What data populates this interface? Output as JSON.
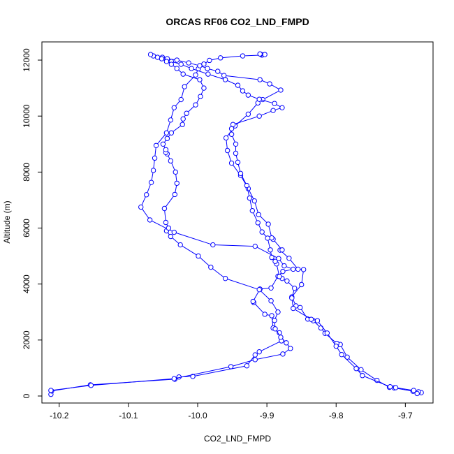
{
  "chart_data": {
    "type": "line",
    "title": "ORCAS RF06 CO2_LND_FMPD",
    "xlabel": "CO2_LND_FMPD",
    "ylabel": "Altitude (m)",
    "xlim": [
      -10.225,
      -9.66
    ],
    "ylim": [
      -250,
      12650
    ],
    "x_ticks": [
      -10.2,
      -10.1,
      -10.0,
      -9.9,
      -9.8,
      -9.7
    ],
    "x_tick_labels": [
      "-10.2",
      "-10.1",
      "-10.0",
      "-9.9",
      "-9.8",
      "-9.7"
    ],
    "y_ticks": [
      0,
      2000,
      4000,
      6000,
      8000,
      10000,
      12000
    ],
    "y_tick_labels": [
      "0",
      "2000",
      "4000",
      "6000",
      "8000",
      "10000",
      "12000"
    ],
    "color": "#0000ff",
    "series": [
      {
        "x": [
          -10.212,
          -10.211,
          -10.155,
          -10.033,
          -10.027,
          -10.007,
          -9.929,
          -9.917,
          -9.911,
          -9.879,
          -9.882,
          -9.891,
          -9.893,
          -9.903,
          -9.919,
          -9.92,
          -9.91,
          -9.894,
          -9.884,
          -9.877,
          -9.862,
          -9.875,
          -9.883,
          -9.917,
          -9.978,
          -10.034,
          -10.069,
          -10.082,
          -10.074,
          -10.067,
          -10.064,
          -10.062,
          -10.06,
          -10.045,
          -10.039,
          -10.034,
          -10.024,
          -10.019,
          -10.003,
          -9.999,
          -9.991,
          -9.983,
          -9.967,
          -9.935,
          -9.907,
          -9.903,
          -9.909,
          -9.91
        ],
        "y": [
          60,
          180,
          400,
          600,
          680,
          700,
          1080,
          1470,
          1580,
          1970,
          2260,
          2430,
          2870,
          2920,
          3340,
          3380,
          3820,
          3860,
          4280,
          4450,
          4530,
          4650,
          4910,
          5350,
          5400,
          5850,
          6290,
          6750,
          7190,
          7630,
          8060,
          8500,
          8950,
          9400,
          9860,
          10300,
          10590,
          11050,
          11470,
          11690,
          11860,
          11990,
          12080,
          12150,
          12180,
          12200,
          12210,
          12220
        ]
      },
      {
        "x": [
          -9.677,
          -9.681,
          -9.689,
          -9.716,
          -9.723,
          -9.741,
          -9.764,
          -9.784,
          -9.794,
          -9.799,
          -9.816,
          -9.822,
          -9.833,
          -9.841,
          -9.852,
          -9.858,
          -9.864,
          -9.85,
          -9.847,
          -9.855,
          -9.868,
          -9.881,
          -9.878,
          -9.891,
          -9.893,
          -9.898,
          -9.912,
          -9.918,
          -9.927,
          -9.938,
          -9.951,
          -9.957,
          -9.959,
          -9.946,
          -9.927,
          -9.913,
          -9.906,
          -9.88,
          -9.896,
          -9.91,
          -9.962,
          -9.971,
          -9.986,
          -9.997,
          -10.013,
          -10.03,
          -10.044,
          -10.051
        ],
        "y": [
          120,
          150,
          170,
          290,
          310,
          560,
          940,
          1390,
          1840,
          1880,
          2240,
          2430,
          2690,
          2750,
          3160,
          3220,
          3540,
          3980,
          4520,
          4530,
          4920,
          5210,
          5220,
          5600,
          5650,
          6140,
          6480,
          6970,
          7410,
          7880,
          8320,
          8770,
          9220,
          9650,
          10070,
          10470,
          10590,
          10930,
          11150,
          11300,
          11450,
          11600,
          11700,
          11800,
          11900,
          12000,
          12050,
          12100
        ]
      },
      {
        "x": [
          -9.683,
          -9.688,
          -9.714,
          -9.722,
          -9.762,
          -9.771,
          -9.792,
          -9.8,
          -9.813,
          -9.827,
          -9.836,
          -9.862,
          -9.864,
          -9.86,
          -9.871,
          -9.878,
          -9.882,
          -9.886,
          -9.888,
          -9.893,
          -9.895,
          -9.899,
          -9.907,
          -9.913,
          -9.921,
          -9.925,
          -9.929,
          -9.938,
          -9.942,
          -9.945,
          -9.945,
          -9.951,
          -9.951,
          -9.949,
          -9.911,
          -9.891,
          -9.878,
          -9.889,
          -9.911,
          -9.927,
          -9.935,
          -9.942,
          -9.96,
          -9.985,
          -10.009,
          -10.024,
          -10.038,
          -10.052
        ],
        "y": [
          90,
          200,
          300,
          330,
          730,
          980,
          1480,
          1780,
          2250,
          2690,
          2740,
          3130,
          3500,
          3850,
          4110,
          4200,
          4270,
          4720,
          4810,
          4950,
          5220,
          5640,
          5860,
          6190,
          6620,
          7070,
          7520,
          7950,
          8350,
          8670,
          9000,
          9350,
          9550,
          9700,
          10000,
          10200,
          10300,
          10450,
          10600,
          10750,
          10900,
          11100,
          11300,
          11500,
          11700,
          11850,
          11950,
          12050
        ]
      },
      {
        "x": [
          -10.212,
          -10.154,
          -10.034,
          -9.952,
          -9.917,
          -9.877,
          -9.866,
          -9.872,
          -9.88,
          -9.888,
          -9.889,
          -9.884,
          -9.894,
          -9.911,
          -9.96,
          -9.981,
          -9.999,
          -10.025,
          -10.039,
          -10.045,
          -10.042,
          -10.046,
          -10.048,
          -10.033,
          -10.03,
          -10.032,
          -10.039,
          -10.044,
          -10.046,
          -10.046,
          -10.05,
          -10.044,
          -10.038,
          -10.022,
          -10.021,
          -10.016,
          -10.003,
          -9.996,
          -9.991,
          -9.997,
          -10.021,
          -10.03,
          -10.038,
          -10.045,
          -10.052,
          -10.058,
          -10.064,
          -10.068
        ],
        "y": [
          200,
          380,
          620,
          1050,
          1300,
          1500,
          1700,
          1900,
          2100,
          2400,
          2700,
          3000,
          3400,
          3800,
          4200,
          4600,
          5000,
          5400,
          5700,
          5900,
          6000,
          6200,
          6700,
          7200,
          7600,
          8000,
          8400,
          8650,
          8700,
          8800,
          9000,
          9200,
          9400,
          9700,
          9900,
          10100,
          10400,
          10700,
          11000,
          11300,
          11500,
          11700,
          11850,
          11950,
          12050,
          12100,
          12150,
          12200
        ]
      }
    ]
  }
}
